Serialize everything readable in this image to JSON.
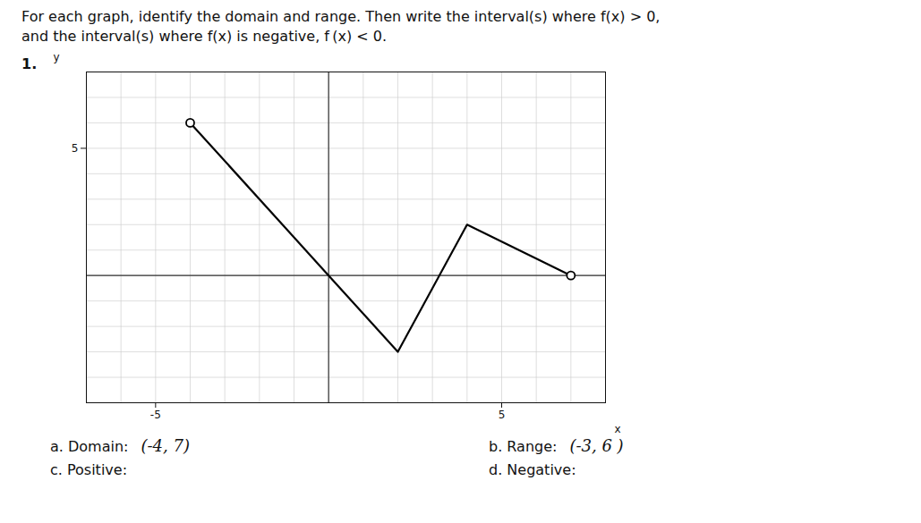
{
  "chart_data": {
    "type": "line",
    "title": "For each graph, identify the domain and range. Then write the interval(s) where f(x) > 0,",
    "subtitle": "and the interval(s) where f(x) is negative, f (x) < 0.",
    "x": [
      -4,
      0,
      2,
      4,
      7
    ],
    "values": [
      6,
      0,
      -3,
      2,
      0
    ],
    "color": "#000000",
    "open_points": [
      [
        -4,
        6
      ],
      [
        7,
        0
      ]
    ],
    "xlim": [
      -7,
      8
    ],
    "ylim": [
      -5,
      8
    ],
    "xticks": [
      -5,
      5
    ],
    "yticks": [
      5
    ],
    "xlabel": "x",
    "ylabel": "y",
    "grid": true,
    "annotations": [
      "1.",
      "a. Domain:",
      "(-4, 7)",
      "b. Range:",
      "(-3, 6 )",
      "c. Positive:",
      "d. Negative:"
    ]
  }
}
